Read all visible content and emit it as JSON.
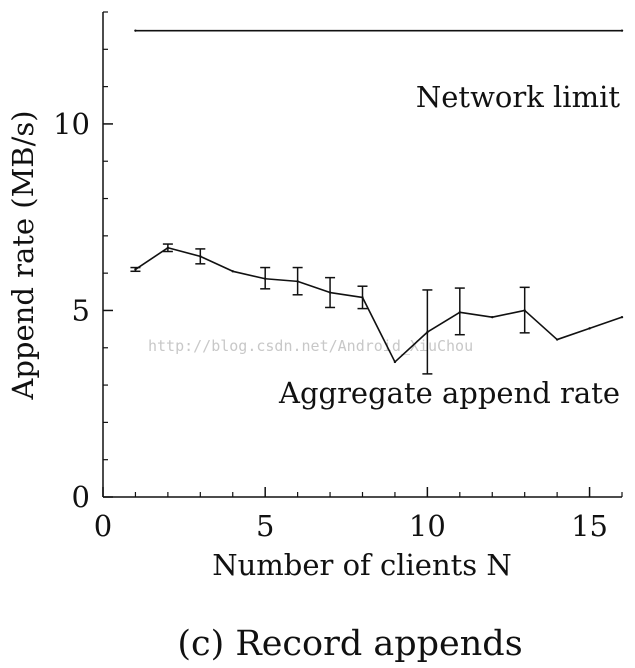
{
  "chart_data": {
    "type": "line",
    "title": "",
    "caption": "(c) Record appends",
    "xlabel": "Number of clients N",
    "ylabel": "Append rate (MB/s)",
    "xlim": [
      0,
      16
    ],
    "ylim": [
      0,
      13
    ],
    "x_ticks": [
      0,
      5,
      10,
      15
    ],
    "x_tick_labels": [
      "0",
      "5",
      "10",
      "15"
    ],
    "y_ticks": [
      0,
      5,
      10
    ],
    "y_tick_labels": [
      "0",
      "5",
      "10"
    ],
    "x_minor_ticks": [
      1,
      2,
      3,
      4,
      6,
      7,
      8,
      9,
      11,
      12,
      13,
      14,
      16
    ],
    "y_minor_ticks": [
      1,
      2,
      3,
      4,
      6,
      7,
      8,
      9,
      11,
      12,
      13
    ],
    "grid": false,
    "series": [
      {
        "name": "Aggregate append rate",
        "x": [
          1,
          2,
          3,
          4,
          5,
          6,
          7,
          8,
          9,
          10,
          11,
          12,
          13,
          14,
          15,
          16
        ],
        "values": [
          6.1,
          6.68,
          6.45,
          6.05,
          5.85,
          5.78,
          5.48,
          5.35,
          3.62,
          4.42,
          4.95,
          4.82,
          5.0,
          4.22,
          4.52,
          4.82
        ],
        "error_low": [
          6.05,
          6.58,
          6.25,
          null,
          5.58,
          5.42,
          5.08,
          5.05,
          null,
          3.3,
          4.35,
          null,
          4.4,
          null,
          null,
          null
        ],
        "error_high": [
          6.15,
          6.78,
          6.65,
          null,
          6.15,
          6.15,
          5.88,
          5.65,
          null,
          5.55,
          5.6,
          null,
          5.62,
          null,
          null,
          null
        ],
        "color": "#111111"
      },
      {
        "name": "Network limit",
        "x": [
          1,
          16
        ],
        "values": [
          12.5,
          12.5
        ],
        "color": "#111111"
      }
    ],
    "annotations": [
      {
        "text": "Network limit",
        "series": "Network limit"
      },
      {
        "text": "Aggregate append rate",
        "series": "Aggregate append rate"
      }
    ],
    "watermark": "http://blog.csdn.net/Android_XiuChou"
  }
}
